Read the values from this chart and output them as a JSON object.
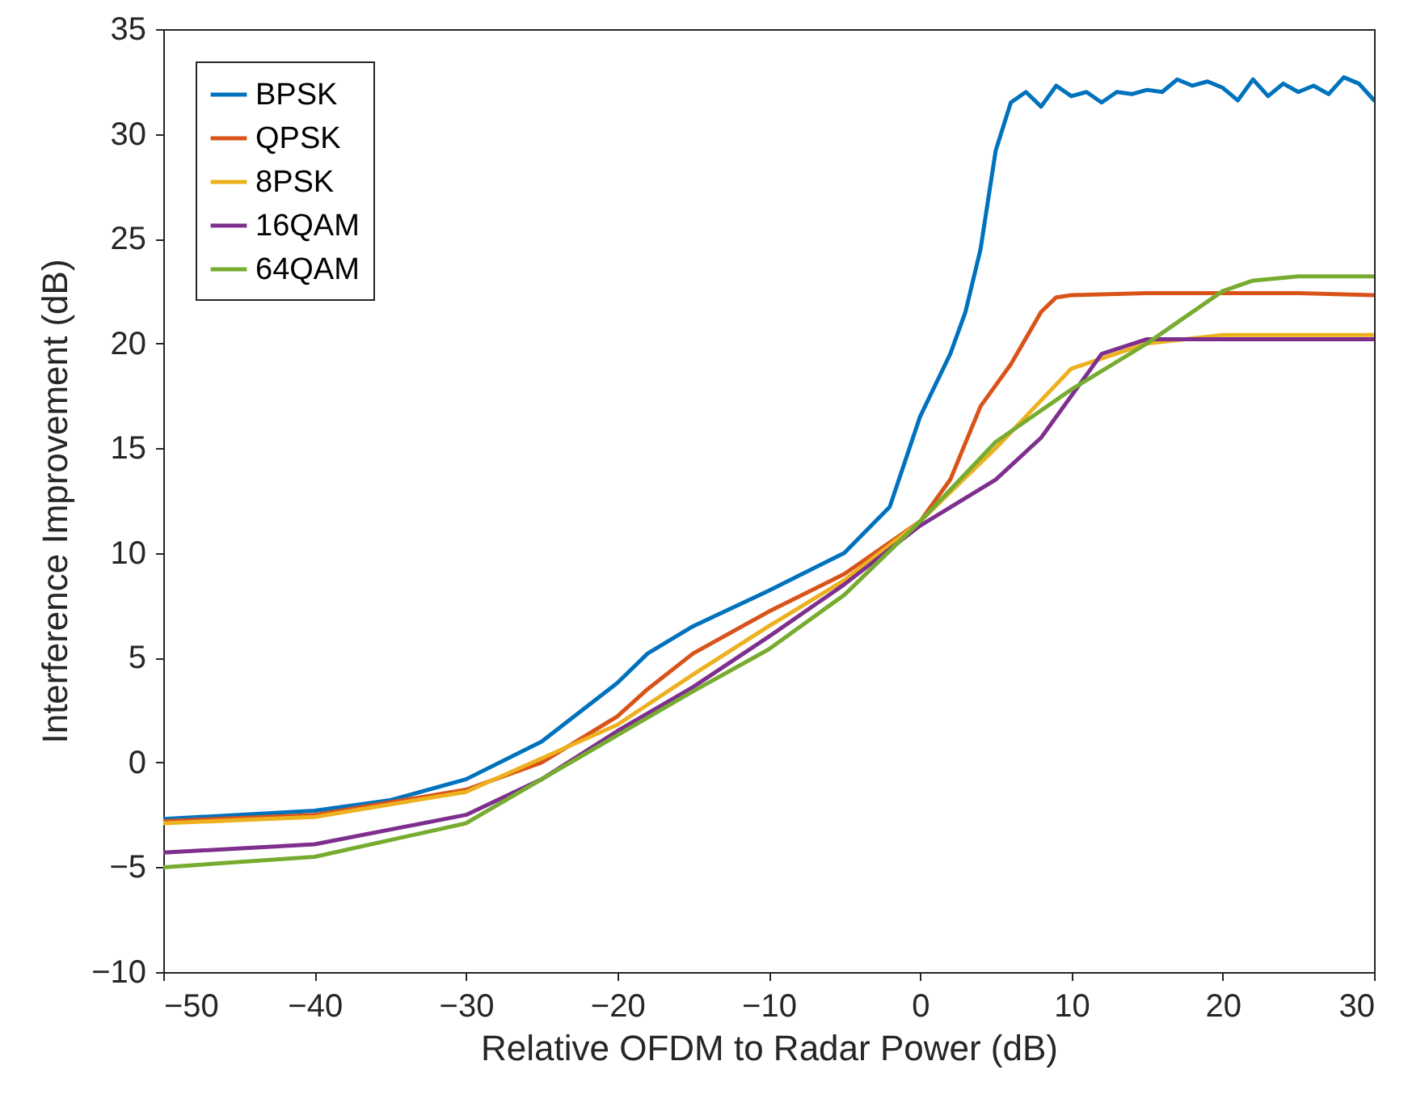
{
  "chart_data": {
    "type": "line",
    "xlabel": "Relative OFDM to Radar Power (dB)",
    "ylabel": "Interference Improvement (dB)",
    "xlim": [
      -50,
      30
    ],
    "ylim": [
      -10,
      35
    ],
    "xticks": [
      -50,
      -40,
      -30,
      -20,
      -10,
      0,
      10,
      20,
      30
    ],
    "yticks": [
      -10,
      -5,
      0,
      5,
      10,
      15,
      20,
      25,
      30,
      35
    ],
    "grid": false,
    "legend": "top left",
    "line_style": "solid",
    "marker": "none",
    "series": [
      {
        "name": "BPSK",
        "color": "#0072bd",
        "x": [
          -50,
          -40,
          -35,
          -30,
          -25,
          -20,
          -18,
          -15,
          -10,
          -5,
          -2,
          0,
          2,
          3,
          4,
          5,
          6,
          7,
          8,
          9,
          10,
          11,
          12,
          13,
          14,
          15,
          16,
          17,
          18,
          19,
          20,
          21,
          22,
          23,
          24,
          25,
          26,
          27,
          28,
          29,
          30
        ],
        "values": [
          -2.7,
          -2.3,
          -1.8,
          -0.8,
          1.0,
          3.8,
          5.2,
          6.5,
          8.2,
          10.0,
          12.2,
          16.5,
          19.5,
          21.5,
          24.5,
          29.2,
          31.5,
          32.0,
          31.3,
          32.3,
          31.8,
          32.0,
          31.5,
          32.0,
          31.9,
          32.1,
          32.0,
          32.6,
          32.3,
          32.5,
          32.2,
          31.6,
          32.6,
          31.8,
          32.4,
          32.0,
          32.3,
          31.9,
          32.7,
          32.4,
          31.6
        ]
      },
      {
        "name": "QPSK",
        "color": "#d95319",
        "x": [
          -50,
          -40,
          -30,
          -25,
          -20,
          -18,
          -15,
          -10,
          -5,
          0,
          2,
          4,
          6,
          8,
          9,
          10,
          15,
          20,
          25,
          30
        ],
        "values": [
          -2.8,
          -2.5,
          -1.3,
          0.0,
          2.2,
          3.5,
          5.2,
          7.2,
          9.0,
          11.5,
          13.5,
          17.0,
          19.0,
          21.5,
          22.2,
          22.3,
          22.4,
          22.4,
          22.4,
          22.3
        ]
      },
      {
        "name": "8PSK",
        "color": "#edb120",
        "x": [
          -50,
          -40,
          -30,
          -20,
          -15,
          -10,
          -5,
          0,
          5,
          10,
          15,
          20,
          25,
          30
        ],
        "values": [
          -2.9,
          -2.6,
          -1.4,
          1.8,
          4.2,
          6.5,
          8.7,
          11.5,
          15.0,
          18.8,
          20.0,
          20.4,
          20.4,
          20.4
        ]
      },
      {
        "name": "16QAM",
        "color": "#7e2f8e",
        "x": [
          -50,
          -40,
          -30,
          -25,
          -20,
          -15,
          -10,
          -5,
          0,
          5,
          8,
          10,
          12,
          15,
          20,
          25,
          30
        ],
        "values": [
          -4.3,
          -3.9,
          -2.5,
          -0.8,
          1.5,
          3.6,
          6.0,
          8.5,
          11.3,
          13.5,
          15.5,
          17.5,
          19.5,
          20.2,
          20.2,
          20.2,
          20.2
        ]
      },
      {
        "name": "64QAM",
        "color": "#77ac30",
        "x": [
          -50,
          -40,
          -30,
          -20,
          -15,
          -10,
          -5,
          0,
          5,
          10,
          15,
          20,
          22,
          25,
          30
        ],
        "values": [
          -5.0,
          -4.5,
          -2.9,
          1.3,
          3.4,
          5.4,
          8.0,
          11.5,
          15.3,
          17.8,
          20.0,
          22.5,
          23.0,
          23.2,
          23.2
        ]
      }
    ]
  }
}
